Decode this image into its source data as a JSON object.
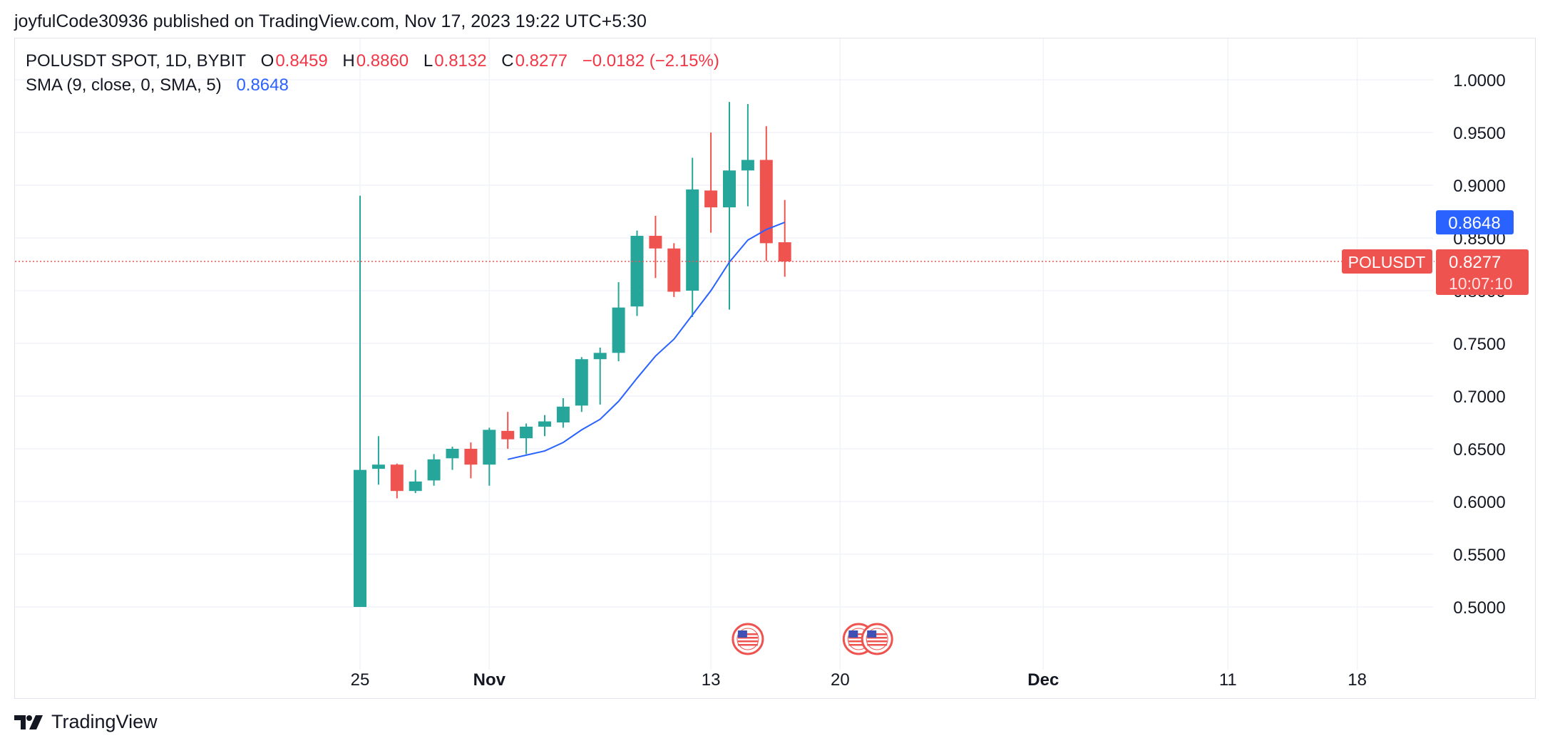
{
  "header": {
    "text": "joyfulCode30936 published on TradingView.com, Nov 17, 2023 19:22 UTC+5:30"
  },
  "legend": {
    "symbol": "POLUSDT SPOT, 1D, BYBIT",
    "open_label": "O",
    "open": "0.8459",
    "high_label": "H",
    "high": "0.8860",
    "low_label": "L",
    "low": "0.8132",
    "close_label": "C",
    "close": "0.8277",
    "change": "−0.0182 (−2.15%)",
    "sma_label": "SMA (9, close, 0, SMA, 5)",
    "sma_value": "0.8648"
  },
  "price_badges": {
    "sma": "0.8648",
    "symbol": "POLUSDT",
    "last": "0.8277",
    "countdown": "10:07:10"
  },
  "footer": {
    "brand": "TradingView"
  },
  "colors": {
    "up": "#26a69a",
    "down": "#ef5350",
    "sma": "#2962ff",
    "grid": "#f0f3fa",
    "text": "#131722"
  },
  "chart_data": {
    "type": "candlestick",
    "symbol": "POLUSDT",
    "interval": "1D",
    "ylim": [
      0.45,
      1.03
    ],
    "y_ticks": [
      "0.5000",
      "0.5500",
      "0.6000",
      "0.6500",
      "0.7000",
      "0.7500",
      "0.8000",
      "0.8500",
      "0.9000",
      "0.9500",
      "1.0000"
    ],
    "x_ticks": [
      {
        "label": "25",
        "date": "2023-10-25",
        "bold": false
      },
      {
        "label": "Nov",
        "date": "2023-11-01",
        "bold": true
      },
      {
        "label": "13",
        "date": "2023-11-13",
        "bold": false
      },
      {
        "label": "20",
        "date": "2023-11-20",
        "bold": false
      },
      {
        "label": "Dec",
        "date": "2023-12-01",
        "bold": true
      },
      {
        "label": "11",
        "date": "2023-12-11",
        "bold": false
      },
      {
        "label": "18",
        "date": "2023-12-18",
        "bold": false
      }
    ],
    "candles": [
      {
        "date": "2023-10-25",
        "o": 0.5,
        "h": 0.89,
        "l": 0.5,
        "c": 0.63
      },
      {
        "date": "2023-10-26",
        "o": 0.631,
        "h": 0.662,
        "l": 0.616,
        "c": 0.635
      },
      {
        "date": "2023-10-27",
        "o": 0.635,
        "h": 0.636,
        "l": 0.603,
        "c": 0.61
      },
      {
        "date": "2023-10-28",
        "o": 0.61,
        "h": 0.63,
        "l": 0.608,
        "c": 0.619
      },
      {
        "date": "2023-10-29",
        "o": 0.62,
        "h": 0.645,
        "l": 0.615,
        "c": 0.64
      },
      {
        "date": "2023-10-30",
        "o": 0.641,
        "h": 0.652,
        "l": 0.63,
        "c": 0.65
      },
      {
        "date": "2023-10-31",
        "o": 0.65,
        "h": 0.656,
        "l": 0.622,
        "c": 0.635
      },
      {
        "date": "2023-11-01",
        "o": 0.635,
        "h": 0.67,
        "l": 0.615,
        "c": 0.668
      },
      {
        "date": "2023-11-02",
        "o": 0.667,
        "h": 0.685,
        "l": 0.65,
        "c": 0.659
      },
      {
        "date": "2023-11-03",
        "o": 0.66,
        "h": 0.674,
        "l": 0.645,
        "c": 0.671
      },
      {
        "date": "2023-11-04",
        "o": 0.671,
        "h": 0.682,
        "l": 0.662,
        "c": 0.676
      },
      {
        "date": "2023-11-05",
        "o": 0.675,
        "h": 0.698,
        "l": 0.67,
        "c": 0.69
      },
      {
        "date": "2023-11-06",
        "o": 0.691,
        "h": 0.737,
        "l": 0.685,
        "c": 0.735
      },
      {
        "date": "2023-11-07",
        "o": 0.735,
        "h": 0.746,
        "l": 0.692,
        "c": 0.741
      },
      {
        "date": "2023-11-08",
        "o": 0.741,
        "h": 0.808,
        "l": 0.733,
        "c": 0.784
      },
      {
        "date": "2023-11-09",
        "o": 0.785,
        "h": 0.857,
        "l": 0.776,
        "c": 0.852
      },
      {
        "date": "2023-11-10",
        "o": 0.852,
        "h": 0.871,
        "l": 0.812,
        "c": 0.84
      },
      {
        "date": "2023-11-11",
        "o": 0.84,
        "h": 0.845,
        "l": 0.794,
        "c": 0.799
      },
      {
        "date": "2023-11-12",
        "o": 0.8,
        "h": 0.926,
        "l": 0.775,
        "c": 0.896
      },
      {
        "date": "2023-11-13",
        "o": 0.895,
        "h": 0.95,
        "l": 0.855,
        "c": 0.879
      },
      {
        "date": "2023-11-14",
        "o": 0.879,
        "h": 0.979,
        "l": 0.782,
        "c": 0.914
      },
      {
        "date": "2023-11-15",
        "o": 0.914,
        "h": 0.977,
        "l": 0.88,
        "c": 0.924
      },
      {
        "date": "2023-11-16",
        "o": 0.924,
        "h": 0.956,
        "l": 0.828,
        "c": 0.845
      },
      {
        "date": "2023-11-17",
        "o": 0.8459,
        "h": 0.886,
        "l": 0.8132,
        "c": 0.8277
      }
    ],
    "sma": [
      {
        "date": "2023-11-02",
        "v": 0.64
      },
      {
        "date": "2023-11-03",
        "v": 0.644
      },
      {
        "date": "2023-11-04",
        "v": 0.648
      },
      {
        "date": "2023-11-05",
        "v": 0.656
      },
      {
        "date": "2023-11-06",
        "v": 0.668
      },
      {
        "date": "2023-11-07",
        "v": 0.678
      },
      {
        "date": "2023-11-08",
        "v": 0.695
      },
      {
        "date": "2023-11-09",
        "v": 0.717
      },
      {
        "date": "2023-11-10",
        "v": 0.738
      },
      {
        "date": "2023-11-11",
        "v": 0.754
      },
      {
        "date": "2023-11-12",
        "v": 0.777
      },
      {
        "date": "2023-11-13",
        "v": 0.8
      },
      {
        "date": "2023-11-14",
        "v": 0.827
      },
      {
        "date": "2023-11-15",
        "v": 0.848
      },
      {
        "date": "2023-11-16",
        "v": 0.858
      },
      {
        "date": "2023-11-17",
        "v": 0.8648
      }
    ],
    "last_price": 0.8277,
    "sma_last": 0.8648,
    "events": [
      {
        "date": "2023-11-15",
        "icon": "us-flag-icon"
      },
      {
        "date": "2023-11-21",
        "icon": "us-flag-icon"
      },
      {
        "date": "2023-11-22",
        "icon": "us-flag-icon"
      }
    ]
  }
}
